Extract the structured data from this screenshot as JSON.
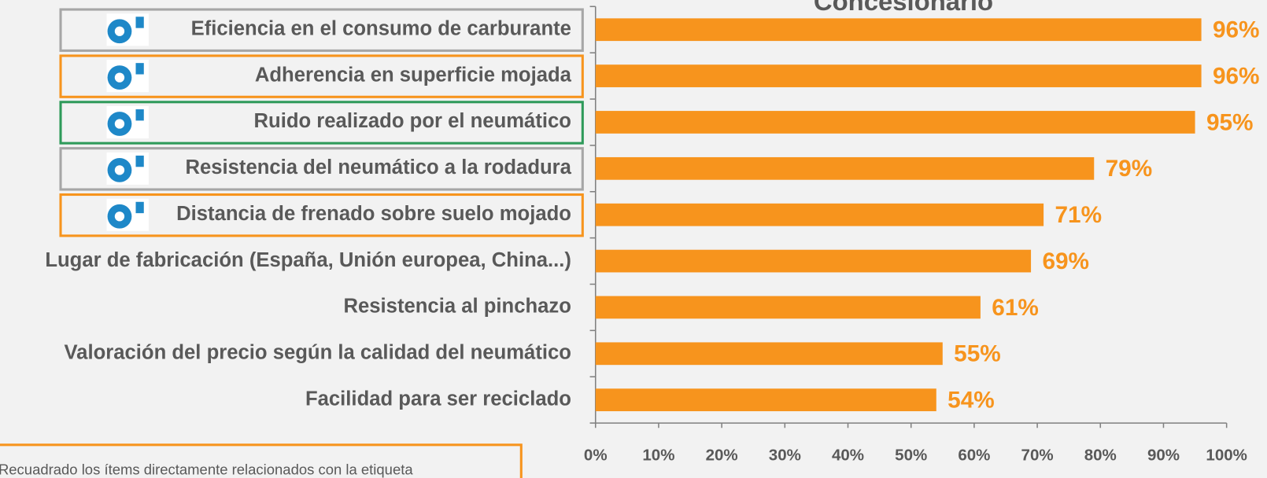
{
  "chart_data": {
    "type": "bar",
    "orientation": "horizontal",
    "title": "Concesionario",
    "categories": [
      "Eficiencia en el consumo de carburante",
      "Adherencia en superficie mojada",
      "Ruido realizado por el neumático",
      "Resistencia del neumático a la rodadura",
      "Distancia de frenado sobre suelo mojado",
      "Lugar de fabricación (España, Unión europea, China...)",
      "Resistencia al pinchazo",
      "Valoración del precio según la calidad del neumático",
      "Facilidad para ser reciclado"
    ],
    "values": [
      96,
      96,
      95,
      79,
      71,
      69,
      61,
      55,
      54
    ],
    "value_labels": [
      "96%",
      "96%",
      "95%",
      "79%",
      "71%",
      "69%",
      "61%",
      "55%",
      "54%"
    ],
    "color": "#f7941d",
    "label_box_colors": [
      "#a6a6a6",
      "#f7941d",
      "#2e9a5a",
      "#a6a6a6",
      "#f7941d",
      null,
      null,
      null,
      null
    ],
    "xlim": [
      0,
      100
    ],
    "xticks": [
      {
        "value": 0,
        "label": "0%"
      },
      {
        "value": 10,
        "label": "10%"
      },
      {
        "value": 20,
        "label": "20%"
      },
      {
        "value": 30,
        "label": "30%"
      },
      {
        "value": 40,
        "label": "40%"
      },
      {
        "value": 50,
        "label": "50%"
      },
      {
        "value": 60,
        "label": "60%"
      },
      {
        "value": 70,
        "label": "70%"
      },
      {
        "value": 80,
        "label": "80%"
      },
      {
        "value": 90,
        "label": "90%"
      },
      {
        "value": 100,
        "label": "100%"
      }
    ],
    "note": "Recuadrado los ítems directamente relacionados con la etiqueta"
  }
}
